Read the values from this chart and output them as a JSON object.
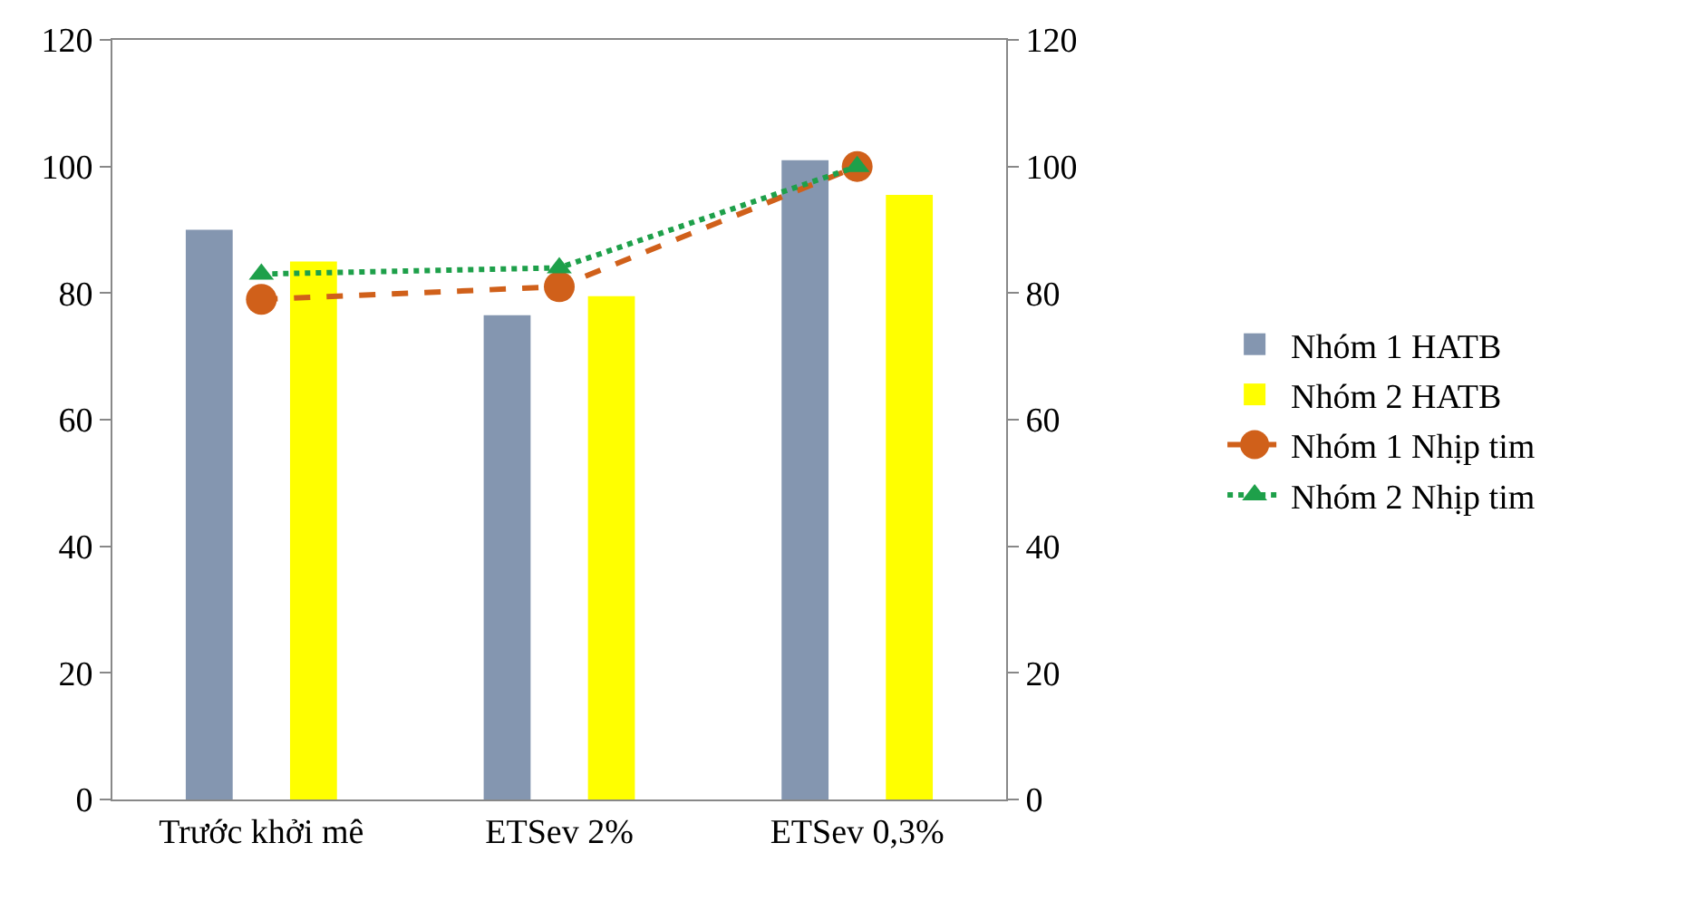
{
  "chart_data": {
    "type": "bar",
    "categories": [
      "Trước khởi mê",
      "ETSev 2%",
      "ETSev 0,3%"
    ],
    "series": [
      {
        "name": "Nhóm 1 HATB",
        "color": "#8496b0",
        "values": [
          90,
          76.5,
          101
        ]
      },
      {
        "name": "Nhóm 2 HATB",
        "color": "#ffff00",
        "values": [
          85,
          79.5,
          95.5
        ]
      },
      {
        "name": "Nhóm 1 Nhịp tim",
        "type": "line",
        "axis": "y2",
        "color": "#d0601a",
        "marker": "circle",
        "line_style": "dashed",
        "values": [
          79,
          81,
          100
        ]
      },
      {
        "name": "Nhóm 2 Nhịp tim",
        "type": "line",
        "axis": "y2",
        "color": "#1ea04a",
        "marker": "triangle",
        "line_style": "dotted",
        "values": [
          83,
          84,
          100
        ]
      }
    ],
    "ylim": [
      0,
      120
    ],
    "yticks": [
      0,
      20,
      40,
      60,
      80,
      100,
      120
    ],
    "y2lim": [
      0,
      120
    ],
    "y2ticks": [
      0,
      20,
      40,
      60,
      80,
      100,
      120
    ],
    "grid": false,
    "legend": "right"
  }
}
